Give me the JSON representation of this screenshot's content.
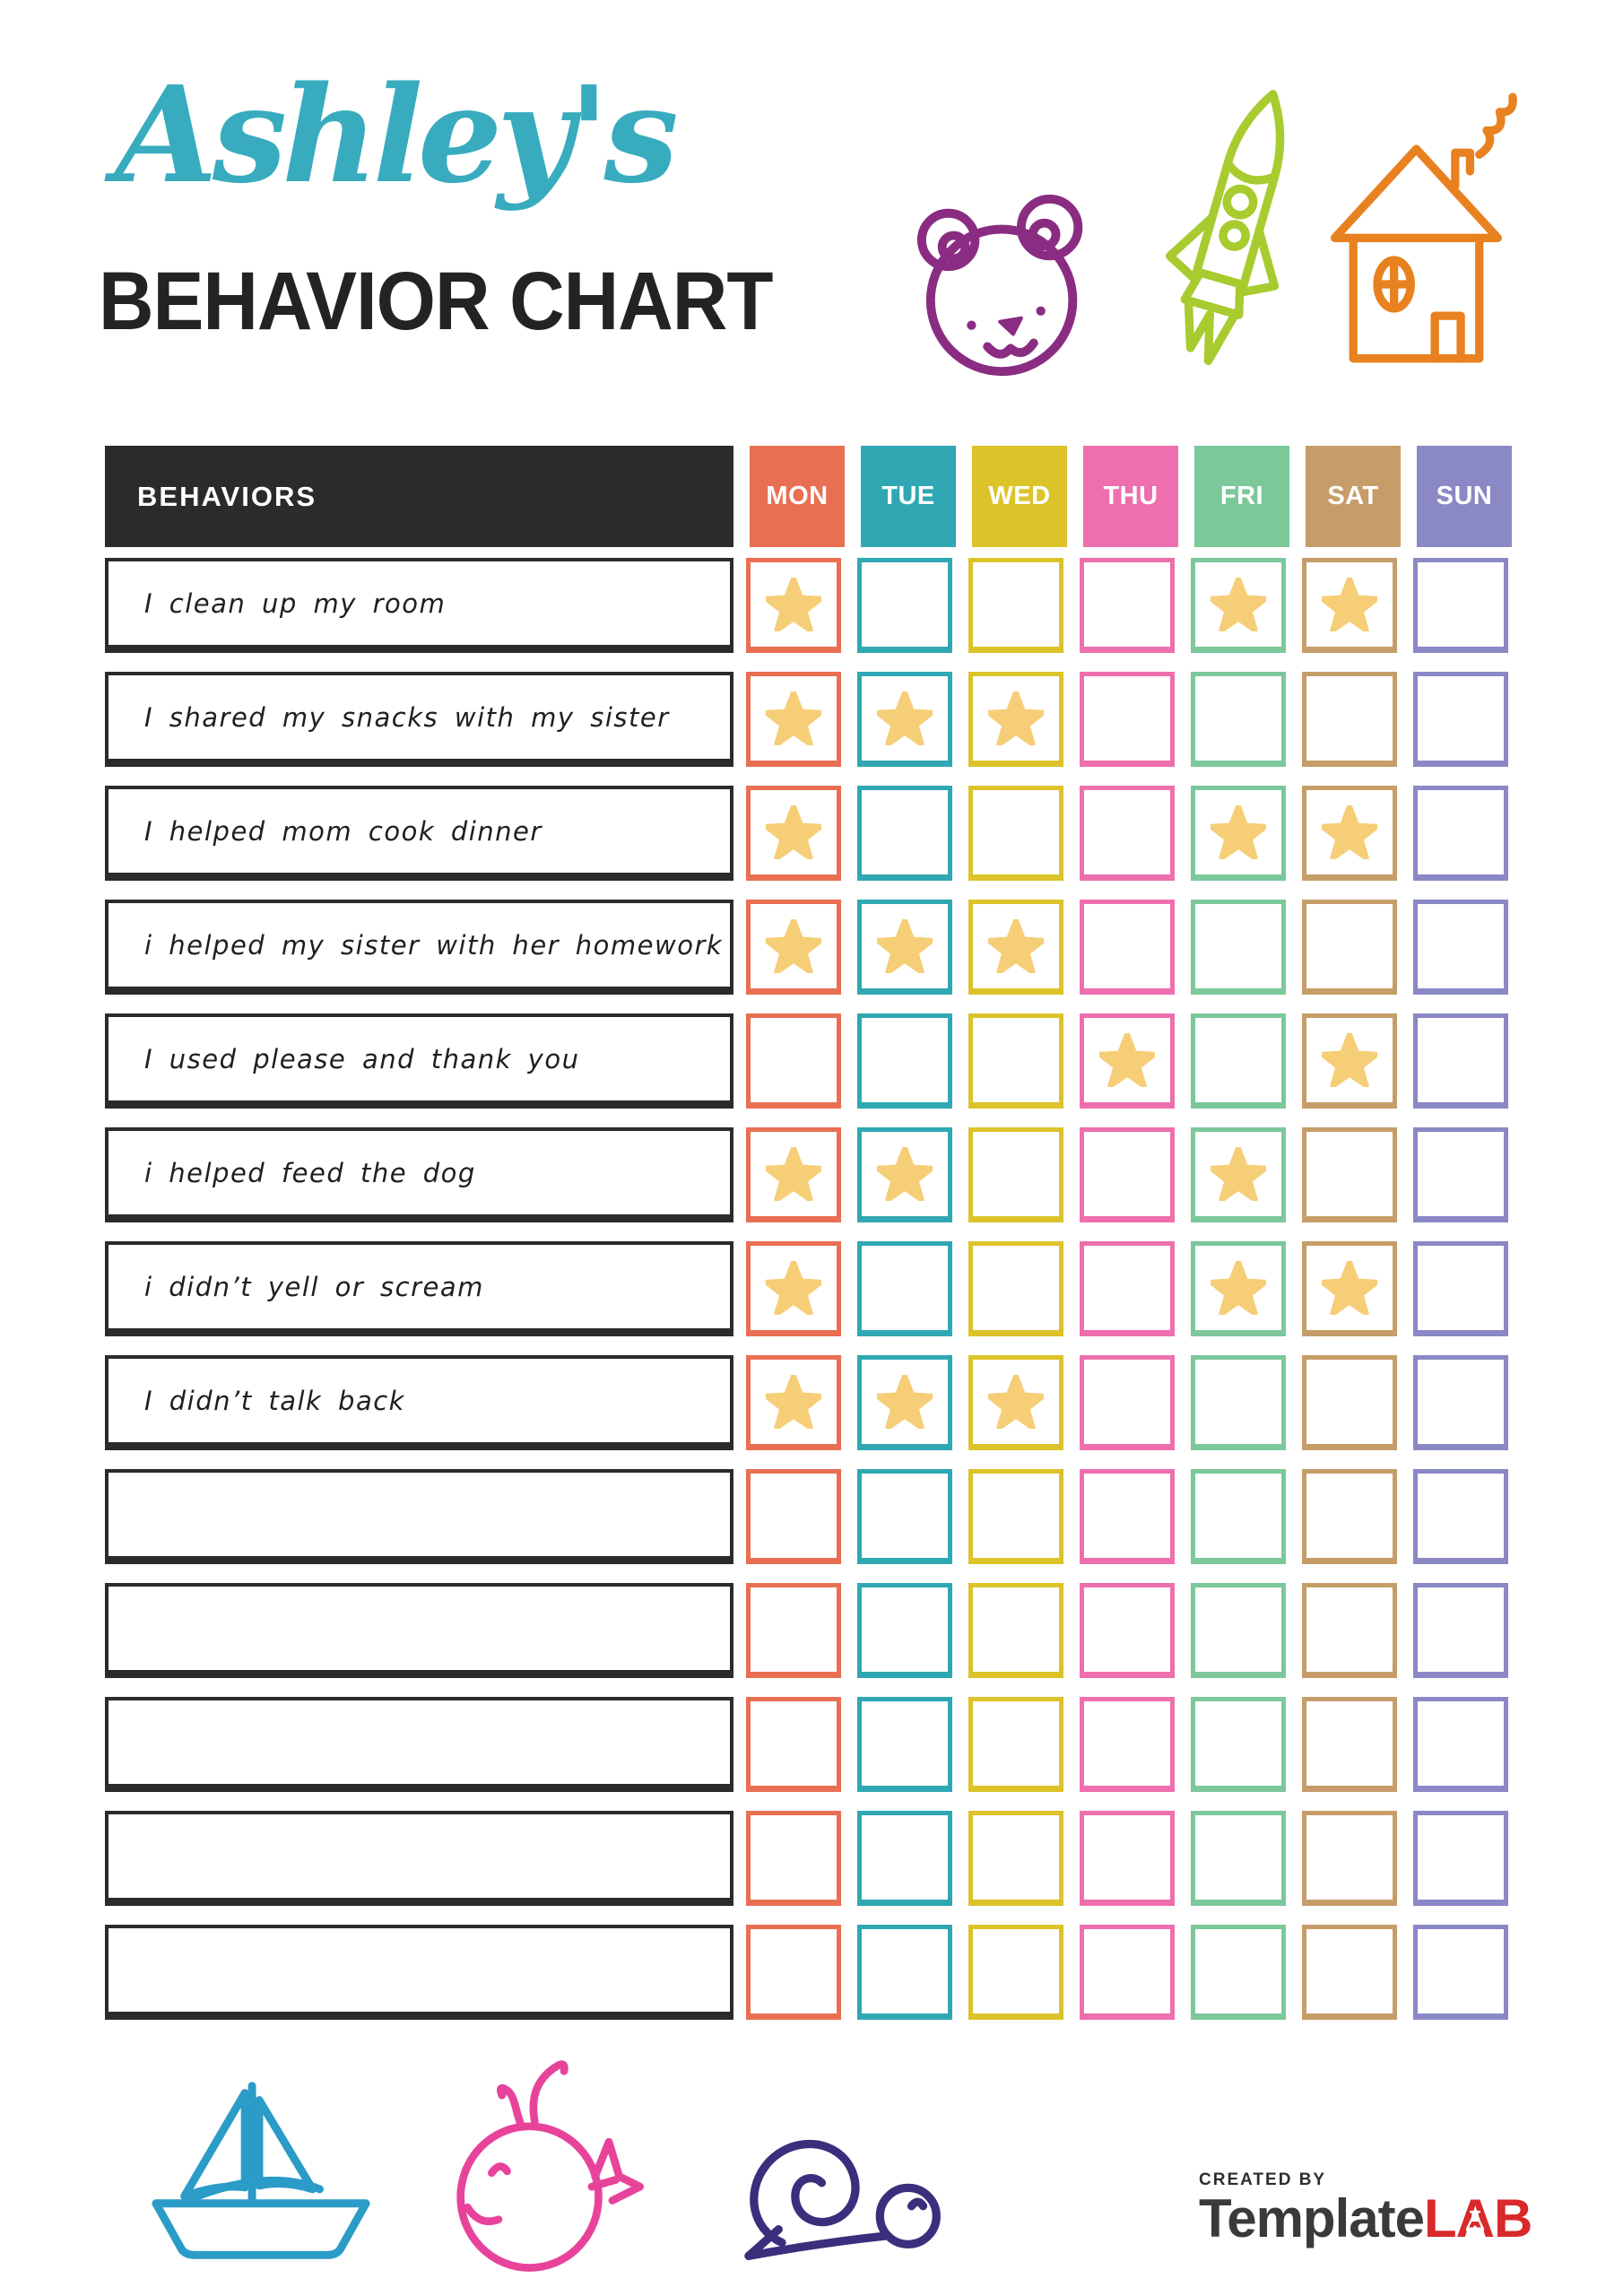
{
  "page": {
    "title_script": "Ashley's",
    "title_script_color": "#38ACBE",
    "title_main": "BEHAVIOR CHART",
    "title_main_color": "#232323"
  },
  "icons": {
    "bear": {
      "name": "bear-icon",
      "color": "#8A2D82"
    },
    "rocket": {
      "name": "rocket-icon",
      "color": "#A8CB2F"
    },
    "house": {
      "name": "house-icon",
      "color": "#E8811F"
    },
    "sailboat": {
      "name": "sailboat-icon",
      "color": "#2B9BC7"
    },
    "whale": {
      "name": "whale-icon",
      "color": "#E8439B"
    },
    "snail": {
      "name": "snail-icon",
      "color": "#3A2F7D"
    }
  },
  "table": {
    "behaviors_header": "BEHAVIORS",
    "header_bg": "#2B2B2B",
    "star_color": "#F6CE77",
    "days": [
      {
        "key": "mon",
        "label": "MON",
        "color": "#E96F53"
      },
      {
        "key": "tue",
        "label": "TUE",
        "color": "#2FA8B3"
      },
      {
        "key": "wed",
        "label": "WED",
        "color": "#DCC32A"
      },
      {
        "key": "thu",
        "label": "THU",
        "color": "#EE6FAE"
      },
      {
        "key": "fri",
        "label": "FRI",
        "color": "#7CC89B"
      },
      {
        "key": "sat",
        "label": "SAT",
        "color": "#C69D69"
      },
      {
        "key": "sun",
        "label": "SUN",
        "color": "#8B88C6"
      }
    ],
    "rows": [
      {
        "label": "I clean up my room",
        "stars": [
          "mon",
          "fri",
          "sat"
        ]
      },
      {
        "label": "I shared my snacks with my sister",
        "stars": [
          "mon",
          "tue",
          "wed"
        ]
      },
      {
        "label": "I helped mom cook dinner",
        "stars": [
          "mon",
          "fri",
          "sat"
        ]
      },
      {
        "label": "i helped my sister with her homework",
        "stars": [
          "mon",
          "tue",
          "wed"
        ]
      },
      {
        "label": "I used please and thank you",
        "stars": [
          "thu",
          "sat"
        ]
      },
      {
        "label": "i helped feed the dog",
        "stars": [
          "mon",
          "tue",
          "fri"
        ]
      },
      {
        "label": "i didn’t yell or scream",
        "stars": [
          "mon",
          "fri",
          "sat"
        ]
      },
      {
        "label": "I didn’t talk back",
        "stars": [
          "mon",
          "tue",
          "wed"
        ]
      },
      {
        "label": "",
        "stars": []
      },
      {
        "label": "",
        "stars": []
      },
      {
        "label": "",
        "stars": []
      },
      {
        "label": "",
        "stars": []
      },
      {
        "label": "",
        "stars": []
      }
    ]
  },
  "logo": {
    "created_by": "CREATED BY",
    "brand_dark": "Template",
    "brand_red": "LAB",
    "dark_color": "#3A3A3A",
    "red_color": "#D9292B"
  }
}
